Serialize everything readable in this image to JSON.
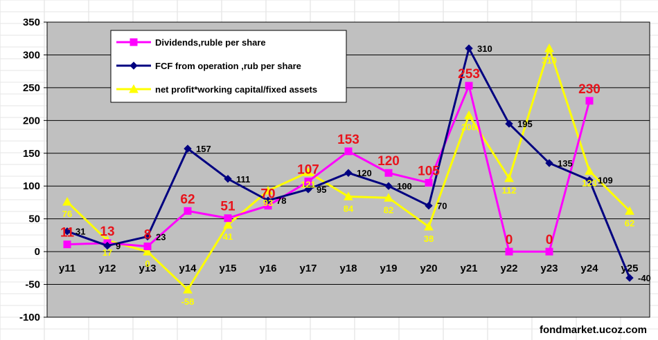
{
  "chart_data": {
    "type": "line",
    "categories": [
      "y11",
      "y12",
      "y13",
      "y14",
      "y15",
      "y16",
      "y17",
      "y18",
      "y19",
      "y20",
      "y21",
      "y22",
      "y23",
      "y24",
      "y25"
    ],
    "ylim": [
      -100,
      350
    ],
    "yticks": [
      -100,
      -50,
      0,
      50,
      100,
      150,
      200,
      250,
      300,
      350
    ],
    "grid": true,
    "legend_position": "top-left",
    "series": [
      {
        "name": "Dividends,ruble per share",
        "color": "#ff00ff",
        "marker": "square",
        "values": [
          11,
          13,
          8,
          62,
          51,
          70,
          107,
          153,
          120,
          105,
          253,
          0,
          0,
          230,
          null
        ],
        "labels": [
          "11",
          "13",
          "8",
          "62",
          "51",
          "70",
          "107",
          "153",
          "120",
          "105",
          "253",
          "0",
          "0",
          "230",
          ""
        ]
      },
      {
        "name": "FCF from operation ,rub per share",
        "color": "#000080",
        "marker": "diamond",
        "values": [
          31,
          9,
          23,
          157,
          111,
          78,
          95,
          120,
          100,
          70,
          310,
          195,
          135,
          109,
          -40
        ],
        "labels": [
          "31",
          "9",
          "23",
          "157",
          "111",
          "78",
          "95",
          "120",
          "100",
          "70",
          "310",
          "195",
          "135",
          "109",
          "-40"
        ]
      },
      {
        "name": "net profit*working capital/fixed assets",
        "color": "#ffff00",
        "marker": "triangle",
        "values": [
          76,
          17,
          0,
          -58,
          41,
          93,
          121,
          84,
          82,
          38,
          208,
          112,
          310,
          123,
          62
        ],
        "labels": [
          "76",
          "17",
          "0",
          "-58",
          "41",
          "93",
          "121",
          "84",
          "82",
          "38",
          "208",
          "112",
          "310",
          "123",
          "62"
        ]
      }
    ],
    "watermark": "fondmarket.ucoz.com"
  },
  "colors": {
    "plot_background": "#c0c0c0",
    "gridline": "#000000"
  }
}
